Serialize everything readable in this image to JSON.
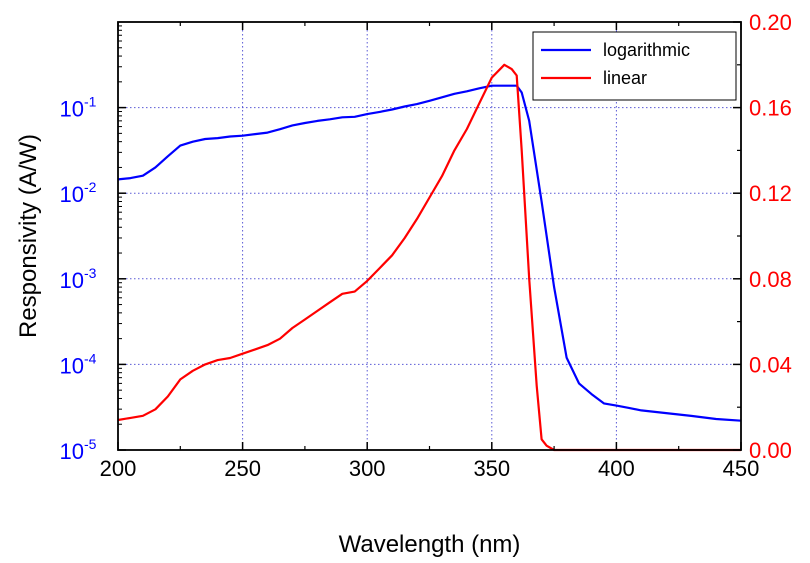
{
  "chart_data": {
    "type": "line",
    "xlabel": "Wavelength (nm)",
    "ylabel": "Responsivity (A/W)",
    "xlim": [
      200,
      450
    ],
    "xticks": [
      200,
      250,
      300,
      350,
      400,
      450
    ],
    "y_left": {
      "scale": "log",
      "lim": [
        1e-05,
        1
      ],
      "ticks": [
        {
          "value": 1e-05,
          "base": "10",
          "exp": "-5"
        },
        {
          "value": 0.0001,
          "base": "10",
          "exp": "-4"
        },
        {
          "value": 0.001,
          "base": "10",
          "exp": "-3"
        },
        {
          "value": 0.01,
          "base": "10",
          "exp": "-2"
        },
        {
          "value": 0.1,
          "base": "10",
          "exp": "-1"
        }
      ],
      "color": "#0000ff"
    },
    "y_right": {
      "scale": "linear",
      "lim": [
        0,
        0.2
      ],
      "ticks": [
        "0.00",
        "0.04",
        "0.08",
        "0.12",
        "0.16",
        "0.20"
      ],
      "color": "#ff0000"
    },
    "grid": true,
    "legend_position": "top-right",
    "series": [
      {
        "name": "logarithmic",
        "axis": "left",
        "color": "#0000ff",
        "x": [
          200,
          205,
          210,
          215,
          220,
          225,
          230,
          235,
          240,
          245,
          250,
          255,
          260,
          265,
          270,
          275,
          280,
          285,
          290,
          295,
          300,
          305,
          310,
          315,
          320,
          325,
          330,
          335,
          340,
          345,
          350,
          355,
          360,
          362,
          365,
          370,
          375,
          380,
          385,
          390,
          395,
          400,
          405,
          410,
          420,
          430,
          440,
          450
        ],
        "y": [
          0.0145,
          0.015,
          0.016,
          0.02,
          0.027,
          0.036,
          0.04,
          0.043,
          0.044,
          0.046,
          0.047,
          0.049,
          0.051,
          0.056,
          0.062,
          0.066,
          0.07,
          0.073,
          0.077,
          0.078,
          0.084,
          0.089,
          0.095,
          0.103,
          0.11,
          0.12,
          0.132,
          0.145,
          0.155,
          0.168,
          0.18,
          0.18,
          0.18,
          0.15,
          0.07,
          0.008,
          0.0008,
          0.00012,
          6e-05,
          4.5e-05,
          3.5e-05,
          3.3e-05,
          3.1e-05,
          2.9e-05,
          2.7e-05,
          2.5e-05,
          2.3e-05,
          2.2e-05
        ]
      },
      {
        "name": "linear",
        "axis": "right",
        "color": "#ff0000",
        "x": [
          200,
          205,
          210,
          215,
          220,
          225,
          230,
          235,
          240,
          245,
          250,
          255,
          260,
          265,
          270,
          275,
          280,
          285,
          290,
          295,
          300,
          305,
          310,
          315,
          320,
          325,
          330,
          335,
          340,
          345,
          350,
          355,
          358,
          360,
          362,
          365,
          368,
          370,
          372,
          375,
          380,
          400,
          450
        ],
        "y": [
          0.014,
          0.015,
          0.016,
          0.019,
          0.025,
          0.033,
          0.037,
          0.04,
          0.042,
          0.043,
          0.045,
          0.047,
          0.049,
          0.052,
          0.057,
          0.061,
          0.065,
          0.069,
          0.073,
          0.074,
          0.079,
          0.085,
          0.091,
          0.099,
          0.108,
          0.118,
          0.128,
          0.14,
          0.15,
          0.162,
          0.174,
          0.18,
          0.178,
          0.175,
          0.14,
          0.08,
          0.03,
          0.005,
          0.002,
          0.0,
          0.0,
          0.0,
          0.0
        ]
      }
    ]
  }
}
